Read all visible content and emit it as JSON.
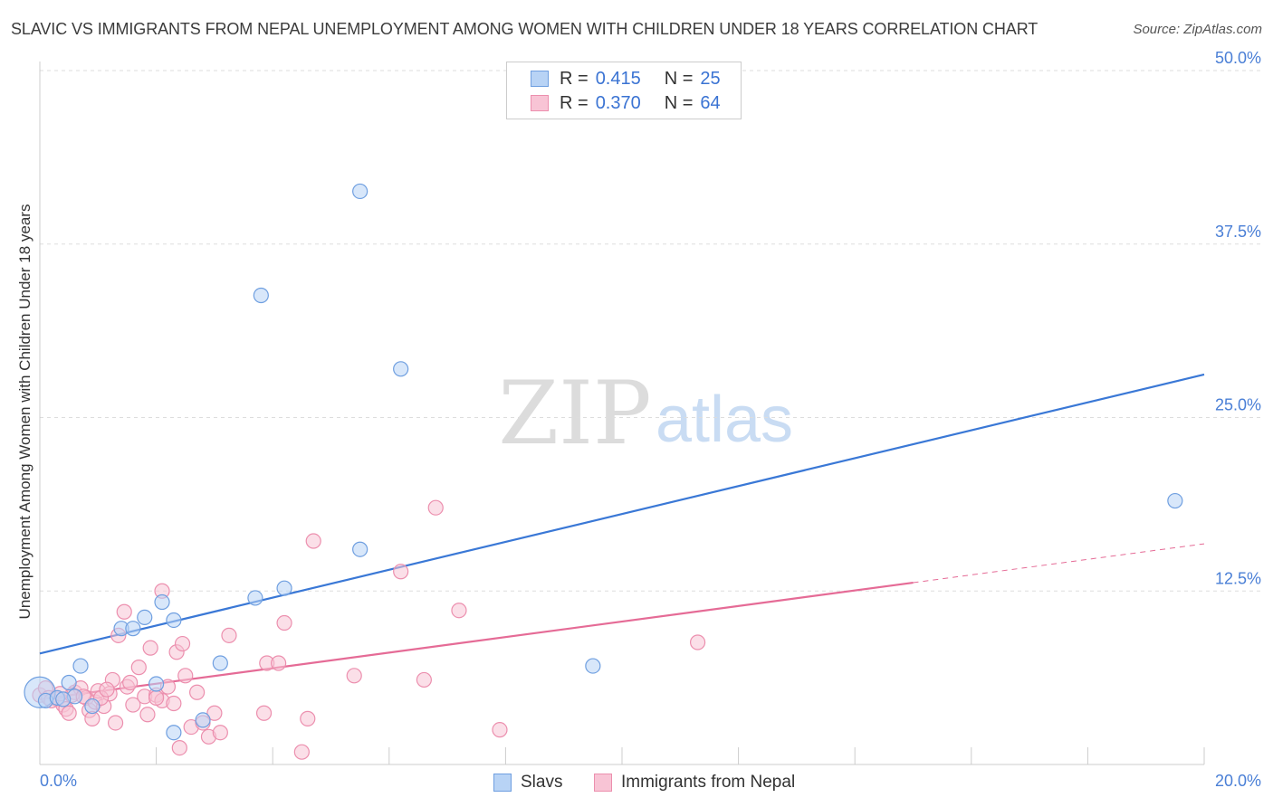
{
  "title": "SLAVIC VS IMMIGRANTS FROM NEPAL UNEMPLOYMENT AMONG WOMEN WITH CHILDREN UNDER 18 YEARS CORRELATION CHART",
  "source": "Source: ZipAtlas.com",
  "watermark": {
    "zip": "ZIP",
    "atlas": "atlas"
  },
  "legend": {
    "r_label": "R =",
    "n_label": "N =",
    "rows": [
      {
        "r": "0.415",
        "n": "25"
      },
      {
        "r": "0.370",
        "n": "64"
      }
    ]
  },
  "colors": {
    "slavs_fill": "#b8d3f5",
    "slavs_stroke": "#6f9fe0",
    "slavs_line": "#3a78d6",
    "nepal_fill": "#f8c4d5",
    "nepal_stroke": "#ec8fae",
    "nepal_line": "#e56b96",
    "grid": "#dddddd",
    "axis_text": "#4a7fd6"
  },
  "chart_data": {
    "type": "scatter",
    "title": "SLAVIC VS IMMIGRANTS FROM NEPAL UNEMPLOYMENT AMONG WOMEN WITH CHILDREN UNDER 18 YEARS CORRELATION CHART",
    "xlabel": "",
    "ylabel": "Unemployment Among Women with Children Under 18 years",
    "xlim": [
      0,
      20
    ],
    "ylim": [
      0,
      50
    ],
    "x_tick_labels": [
      "0.0%",
      "20.0%"
    ],
    "y_ticks": [
      12.5,
      25.0,
      37.5,
      50.0
    ],
    "y_tick_labels": [
      "12.5%",
      "25.0%",
      "37.5%",
      "50.0%"
    ],
    "grid": true,
    "legend_position": "top-center",
    "series": [
      {
        "name": "Slavs",
        "color": "#6f9fe0",
        "trend": {
          "x": [
            0,
            20
          ],
          "y": [
            8.0,
            28.1
          ]
        },
        "points": [
          {
            "x": 0.0,
            "y": 5.2,
            "big": true
          },
          {
            "x": 0.1,
            "y": 4.6
          },
          {
            "x": 0.3,
            "y": 4.8
          },
          {
            "x": 0.5,
            "y": 5.9
          },
          {
            "x": 0.6,
            "y": 4.9
          },
          {
            "x": 0.7,
            "y": 7.1
          },
          {
            "x": 0.9,
            "y": 4.2
          },
          {
            "x": 1.4,
            "y": 9.8
          },
          {
            "x": 1.6,
            "y": 9.8
          },
          {
            "x": 1.8,
            "y": 10.6
          },
          {
            "x": 2.0,
            "y": 5.8
          },
          {
            "x": 2.1,
            "y": 11.7
          },
          {
            "x": 2.3,
            "y": 10.4
          },
          {
            "x": 2.3,
            "y": 2.3
          },
          {
            "x": 2.8,
            "y": 3.2
          },
          {
            "x": 3.1,
            "y": 7.3
          },
          {
            "x": 3.7,
            "y": 12.0
          },
          {
            "x": 3.8,
            "y": 33.8
          },
          {
            "x": 4.2,
            "y": 12.7
          },
          {
            "x": 5.5,
            "y": 41.3
          },
          {
            "x": 5.5,
            "y": 15.5
          },
          {
            "x": 6.2,
            "y": 28.5
          },
          {
            "x": 9.5,
            "y": 7.1
          },
          {
            "x": 19.5,
            "y": 19.0
          },
          {
            "x": 0.4,
            "y": 4.7
          }
        ]
      },
      {
        "name": "Immigrants from Nepal",
        "color": "#ec8fae",
        "trend": {
          "x": [
            0,
            15
          ],
          "y": [
            4.7,
            13.1
          ]
        },
        "trend_dashed": {
          "x": [
            15,
            20
          ],
          "y": [
            13.1,
            15.9
          ]
        },
        "points": [
          {
            "x": 0.0,
            "y": 5.0
          },
          {
            "x": 0.1,
            "y": 5.5
          },
          {
            "x": 0.15,
            "y": 4.8
          },
          {
            "x": 0.3,
            "y": 4.7
          },
          {
            "x": 0.4,
            "y": 4.3
          },
          {
            "x": 0.45,
            "y": 4.0
          },
          {
            "x": 0.5,
            "y": 3.7
          },
          {
            "x": 0.6,
            "y": 5.2
          },
          {
            "x": 0.7,
            "y": 5.5
          },
          {
            "x": 0.8,
            "y": 4.8
          },
          {
            "x": 0.85,
            "y": 3.9
          },
          {
            "x": 0.9,
            "y": 3.3
          },
          {
            "x": 0.95,
            "y": 4.5
          },
          {
            "x": 1.0,
            "y": 5.3
          },
          {
            "x": 1.1,
            "y": 4.2
          },
          {
            "x": 1.2,
            "y": 5.1
          },
          {
            "x": 1.25,
            "y": 6.1
          },
          {
            "x": 1.3,
            "y": 3.0
          },
          {
            "x": 1.35,
            "y": 9.3
          },
          {
            "x": 1.45,
            "y": 11.0
          },
          {
            "x": 1.5,
            "y": 5.6
          },
          {
            "x": 1.6,
            "y": 4.3
          },
          {
            "x": 1.7,
            "y": 7.0
          },
          {
            "x": 1.8,
            "y": 4.9
          },
          {
            "x": 1.85,
            "y": 3.6
          },
          {
            "x": 1.9,
            "y": 8.4
          },
          {
            "x": 2.0,
            "y": 5.0
          },
          {
            "x": 2.1,
            "y": 4.6
          },
          {
            "x": 2.1,
            "y": 12.5
          },
          {
            "x": 2.2,
            "y": 5.6
          },
          {
            "x": 2.3,
            "y": 4.4
          },
          {
            "x": 2.35,
            "y": 8.1
          },
          {
            "x": 2.4,
            "y": 1.2
          },
          {
            "x": 2.45,
            "y": 8.7
          },
          {
            "x": 2.5,
            "y": 6.4
          },
          {
            "x": 2.6,
            "y": 2.7
          },
          {
            "x": 2.7,
            "y": 5.2
          },
          {
            "x": 2.8,
            "y": 3.0
          },
          {
            "x": 2.9,
            "y": 2.0
          },
          {
            "x": 3.0,
            "y": 3.7
          },
          {
            "x": 3.1,
            "y": 2.3
          },
          {
            "x": 3.25,
            "y": 9.3
          },
          {
            "x": 3.85,
            "y": 3.7
          },
          {
            "x": 3.9,
            "y": 7.3
          },
          {
            "x": 4.1,
            "y": 7.3
          },
          {
            "x": 4.2,
            "y": 10.2
          },
          {
            "x": 4.5,
            "y": 0.9
          },
          {
            "x": 4.6,
            "y": 3.3
          },
          {
            "x": 4.7,
            "y": 16.1
          },
          {
            "x": 5.4,
            "y": 6.4
          },
          {
            "x": 6.2,
            "y": 13.9
          },
          {
            "x": 6.6,
            "y": 6.1
          },
          {
            "x": 6.8,
            "y": 18.5
          },
          {
            "x": 7.2,
            "y": 11.1
          },
          {
            "x": 7.9,
            "y": 2.5
          },
          {
            "x": 11.3,
            "y": 8.8
          },
          {
            "x": 0.55,
            "y": 5.0
          },
          {
            "x": 0.75,
            "y": 4.9
          },
          {
            "x": 1.05,
            "y": 4.8
          },
          {
            "x": 1.15,
            "y": 5.4
          },
          {
            "x": 0.2,
            "y": 4.6
          },
          {
            "x": 0.35,
            "y": 5.1
          },
          {
            "x": 2.0,
            "y": 4.8
          },
          {
            "x": 1.55,
            "y": 5.9
          }
        ]
      }
    ]
  }
}
